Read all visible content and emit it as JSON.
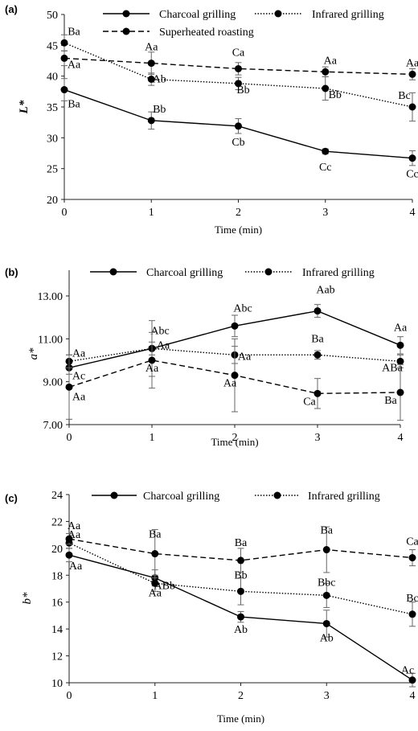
{
  "chart_data": [
    {
      "type": "line",
      "panel_label": "(a)",
      "xlabel": "Time (min)",
      "ylabel": "L*",
      "x": [
        0,
        1,
        2,
        3,
        4
      ],
      "xticks": [
        "0",
        "1",
        "2",
        "3",
        "4"
      ],
      "yticks": [
        "20",
        "25",
        "30",
        "35",
        "40",
        "45",
        "50"
      ],
      "ylim": [
        20,
        50
      ],
      "grid": false,
      "legend_position": "top",
      "series": [
        {
          "name": "Charcoal grilling",
          "style": "solid",
          "values": [
            37.8,
            32.8,
            31.9,
            27.8,
            26.7
          ],
          "errors": [
            1.8,
            1.4,
            1.2,
            0.4,
            1.2
          ],
          "labels": [
            "Ba",
            "Bb",
            "Cb",
            "Cc",
            "Cc"
          ]
        },
        {
          "name": "Infrared grilling",
          "style": "dotted",
          "values": [
            45.4,
            39.5,
            38.8,
            38.0,
            35.0
          ],
          "errors": [
            1.3,
            1.0,
            1.0,
            1.9,
            2.3
          ],
          "labels": [
            "Ba",
            "Ab",
            "Bb",
            "Bb",
            "Bc"
          ]
        },
        {
          "name": "Superheated roasting",
          "style": "dashed",
          "values": [
            42.9,
            42.1,
            41.2,
            40.7,
            40.3
          ],
          "errors": [
            1.2,
            1.8,
            1.0,
            0.8,
            0.9
          ],
          "labels": [
            "Aa",
            "Aa",
            "Ca",
            "Aa",
            "Aa"
          ]
        }
      ]
    },
    {
      "type": "line",
      "panel_label": "(b)",
      "xlabel": "Time (min)",
      "ylabel": "a*",
      "x": [
        0,
        1,
        2,
        3,
        4
      ],
      "xticks": [
        "0",
        "1",
        "2",
        "3",
        "4"
      ],
      "yticks": [
        "7.00",
        "9.00",
        "11.00",
        "13.00"
      ],
      "ylim": [
        7,
        14.2
      ],
      "grid": false,
      "legend_position": "top",
      "series": [
        {
          "name": "Charcoal grilling",
          "style": "solid",
          "values": [
            9.65,
            10.55,
            11.6,
            12.3,
            10.7
          ],
          "errors": [
            0.3,
            1.3,
            0.5,
            0.3,
            0.4
          ],
          "labels": [
            "Ac",
            "Abc",
            "Abc",
            "Aab",
            "Aa"
          ]
        },
        {
          "name": "Infrared grilling",
          "style": "dotted",
          "values": [
            9.95,
            10.55,
            10.25,
            10.25,
            9.95
          ],
          "errors": [
            0.3,
            0.3,
            0.4,
            0.2,
            0.3
          ],
          "labels": [
            "Aa",
            "Aa",
            "Aa",
            "Ba",
            "ABa"
          ]
        },
        {
          "name": "",
          "style": "dashed",
          "values": [
            8.75,
            10.0,
            9.3,
            8.45,
            8.5
          ],
          "errors": [
            1.5,
            1.3,
            1.7,
            0.7,
            1.3
          ],
          "labels": [
            "Aa",
            "Aa",
            "Aa",
            "Ca",
            "Ba"
          ]
        }
      ]
    },
    {
      "type": "line",
      "panel_label": "(c)",
      "xlabel": "Time (min)",
      "ylabel": "b*",
      "x": [
        0,
        1,
        2,
        3,
        4
      ],
      "xticks": [
        "0",
        "1",
        "2",
        "3",
        "4"
      ],
      "yticks": [
        "10",
        "12",
        "14",
        "16",
        "18",
        "20",
        "22",
        "24"
      ],
      "ylim": [
        10,
        24
      ],
      "grid": false,
      "legend_position": "top",
      "series": [
        {
          "name": "Charcoal grilling",
          "style": "solid",
          "values": [
            19.5,
            17.8,
            14.9,
            14.4,
            10.2
          ],
          "errors": [
            0.5,
            0.6,
            0.4,
            1.0,
            0.5
          ],
          "labels": [
            "Aa",
            "ABb",
            "Ab",
            "Ab",
            "Ac"
          ]
        },
        {
          "name": "Infrared grilling",
          "style": "dotted",
          "values": [
            20.4,
            17.4,
            16.8,
            16.5,
            15.1
          ],
          "errors": [
            0.4,
            0.6,
            1.0,
            0.9,
            0.9
          ],
          "labels": [
            "Aa",
            "Aa",
            "Bb",
            "Bbc",
            "Bc"
          ]
        },
        {
          "name": "",
          "style": "dashed",
          "values": [
            20.7,
            19.6,
            19.1,
            19.9,
            19.3
          ],
          "errors": [
            0.4,
            1.8,
            0.9,
            1.7,
            0.6
          ],
          "labels": [
            "Aa",
            "Ba",
            "Ba",
            "Ba",
            "Ca"
          ]
        }
      ]
    }
  ]
}
